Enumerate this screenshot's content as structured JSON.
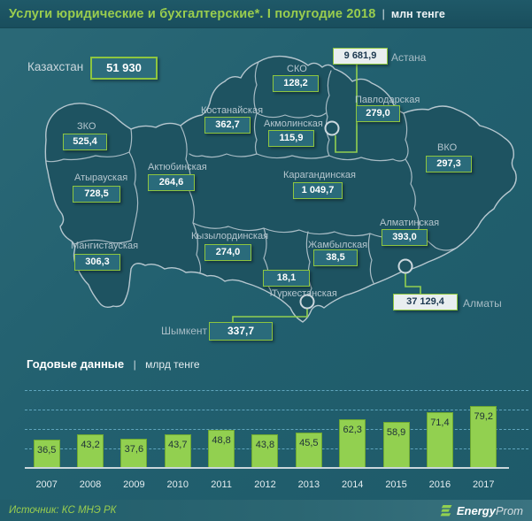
{
  "header": {
    "title": "Услуги юридические и бухгалтерские*. I полугодие 2018",
    "separator": "|",
    "unit": "млн тенге"
  },
  "map": {
    "country": {
      "label": "Казахстан",
      "value": "51 930"
    },
    "regions": [
      {
        "name": "ЗКО",
        "value": "525,4"
      },
      {
        "name": "Атырауская",
        "value": "728,5"
      },
      {
        "name": "Мангистауская",
        "value": "306,3"
      },
      {
        "name": "Актюбинская",
        "value": "264,6"
      },
      {
        "name": "Костанайская",
        "value": "362,7"
      },
      {
        "name": "СКО",
        "value": "128,2"
      },
      {
        "name": "Акмолинская",
        "value": "115,9"
      },
      {
        "name": "Павлодарская",
        "value": "279,0"
      },
      {
        "name": "ВКО",
        "value": "297,3"
      },
      {
        "name": "Карагандинская",
        "value": "1 049,7"
      },
      {
        "name": "Кызылординская",
        "value": "274,0"
      },
      {
        "name": "Жамбылская",
        "value": "38,5"
      },
      {
        "name": "Туркестанская",
        "value": "18,1"
      },
      {
        "name": "Алматинская",
        "value": "393,0"
      }
    ],
    "cities": [
      {
        "name": "Астана",
        "value": "9 681,9"
      },
      {
        "name": "Алматы",
        "value": "37 129,4"
      },
      {
        "name": "Шымкент",
        "value": "337,7"
      }
    ]
  },
  "chart": {
    "title": "Годовые данные",
    "separator": "|",
    "unit": "млрд тенге"
  },
  "chart_data": {
    "type": "bar",
    "categories": [
      "2007",
      "2008",
      "2009",
      "2010",
      "2011",
      "2012",
      "2013",
      "2014",
      "2015",
      "2016",
      "2017"
    ],
    "values": [
      36.5,
      43.2,
      37.6,
      43.7,
      48.8,
      43.8,
      45.5,
      62.3,
      58.9,
      71.4,
      79.2
    ],
    "labels": [
      "36,5",
      "43,2",
      "37,6",
      "43,7",
      "48,8",
      "43,8",
      "45,5",
      "62,3",
      "58,9",
      "71,4",
      "79,2"
    ],
    "title": "Годовые данные",
    "xlabel": "",
    "ylabel": "млрд тенге",
    "ylim": [
      0,
      100
    ],
    "gridlines": [
      25,
      50,
      75,
      100
    ],
    "grid": "dashed-horizontal",
    "legend": "none",
    "bar_color": "#92d050",
    "label_position": "inside-top"
  },
  "footer": {
    "source": "Источник: КС МНЭ РК",
    "logo_bold": "Energy",
    "logo_light": "Prom"
  },
  "colors": {
    "background": "#22606f",
    "header_bg": "#1c5363",
    "accent_green": "#92d050",
    "region_box_fill": "#2a6b7b",
    "city_box_fill": "#e9eef0",
    "map_fill": "#1e5361",
    "map_stroke": "#b6c7cf",
    "grid": "#5fa5bd"
  }
}
